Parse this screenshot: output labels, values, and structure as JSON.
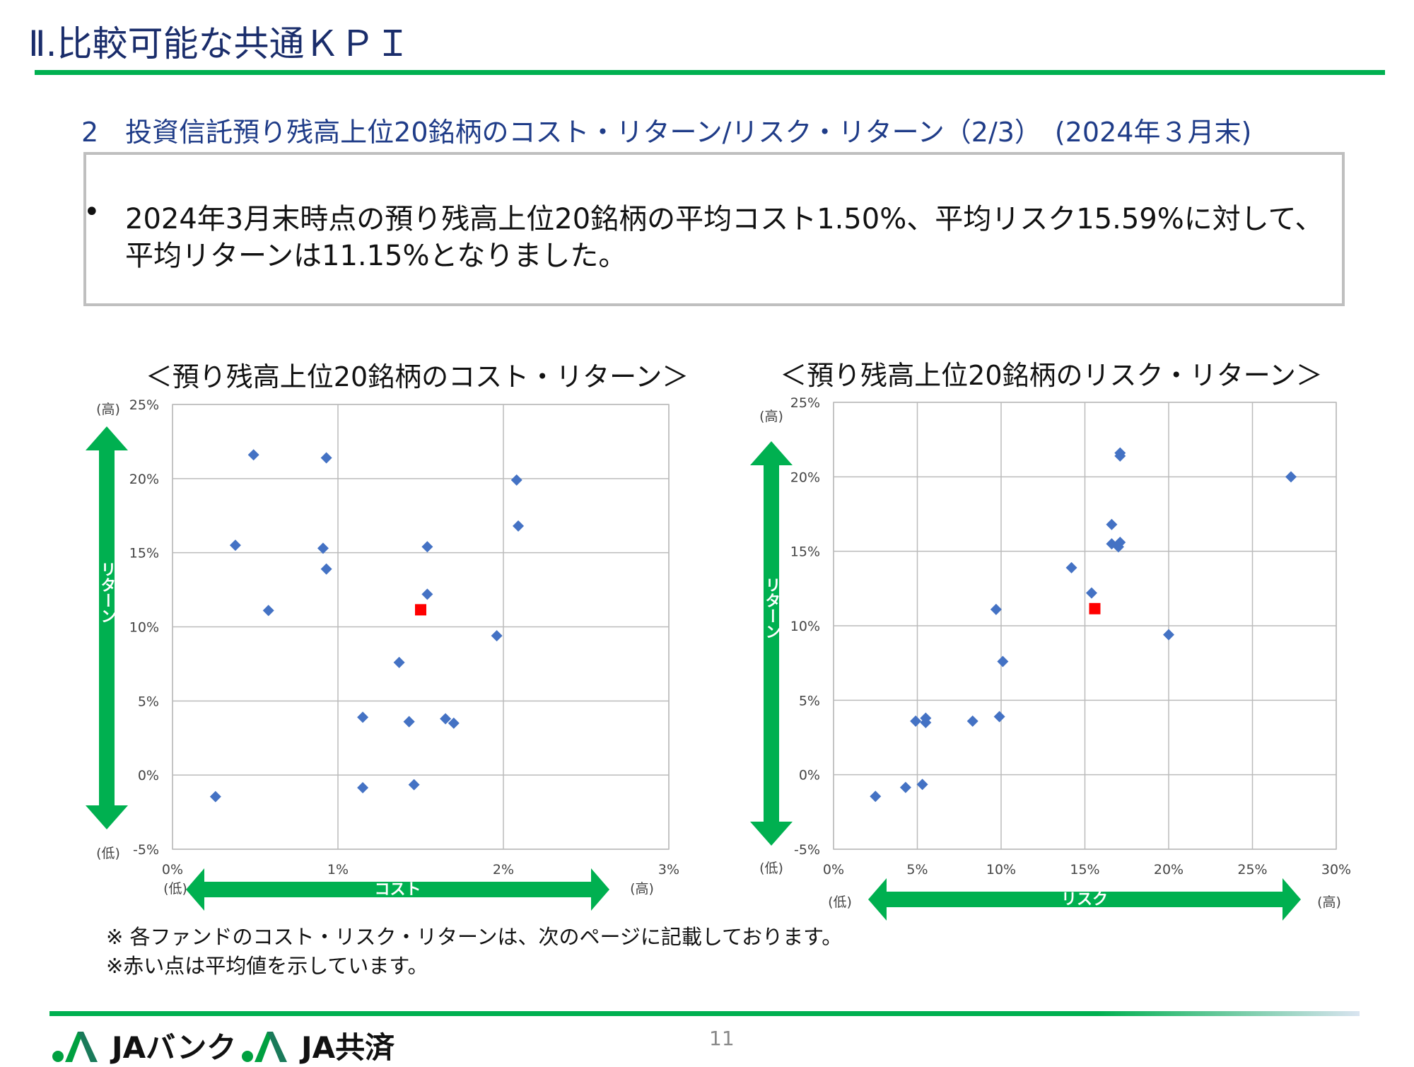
{
  "header": {
    "title": "Ⅱ.比較可能な共通ＫＰＩ",
    "subtitle": "2　投資信託預り残高上位20銘柄のコスト・リターン/リスク・リターン（2/3）　(2024年３月末)"
  },
  "summary": {
    "bullet": "•",
    "line1": "2024年3月末時点の預り残高上位20銘柄の平均コスト1.50%、平均リスク15.59%に対して、",
    "line2": "平均リターンは11.15%となりました。"
  },
  "colors": {
    "accent_green": "#00b050",
    "point_blue": "#4472c4",
    "average_red": "#ff0000",
    "title_navy": "#1a2d6b"
  },
  "chart_data": [
    {
      "type": "scatter",
      "title": "＜預り残高上位20銘柄のコスト・リターン＞",
      "xlabel": "コスト",
      "ylabel": "リターン",
      "x_low": "(低)",
      "x_high": "(高)",
      "y_low": "(低)",
      "y_high": "(高)",
      "xlim": [
        0,
        3
      ],
      "ylim": [
        -5,
        25
      ],
      "xticks": [
        0,
        1,
        2,
        3
      ],
      "xtick_labels": [
        "0%",
        "1%",
        "2%",
        "3%"
      ],
      "yticks": [
        -5,
        0,
        5,
        10,
        15,
        20,
        25
      ],
      "ytick_labels": [
        "-5%",
        "0%",
        "5%",
        "10%",
        "15%",
        "20%",
        "25%"
      ],
      "grid": true,
      "series": [
        {
          "name": "funds",
          "marker": "diamond",
          "points": [
            [
              0.49,
              21.6
            ],
            [
              0.93,
              21.4
            ],
            [
              2.08,
              19.9
            ],
            [
              2.09,
              16.8
            ],
            [
              0.38,
              15.5
            ],
            [
              0.91,
              15.3
            ],
            [
              1.54,
              15.4
            ],
            [
              0.93,
              13.9
            ],
            [
              1.54,
              12.2
            ],
            [
              0.58,
              11.1
            ],
            [
              1.96,
              9.4
            ],
            [
              1.37,
              7.6
            ],
            [
              1.15,
              3.9
            ],
            [
              1.43,
              3.6
            ],
            [
              1.65,
              3.8
            ],
            [
              1.7,
              3.5
            ],
            [
              1.15,
              -0.85
            ],
            [
              1.46,
              -0.65
            ],
            [
              0.26,
              -1.45
            ],
            [
              1.43,
              3.6
            ]
          ]
        },
        {
          "name": "average",
          "marker": "square",
          "points": [
            [
              1.5,
              11.15
            ]
          ]
        }
      ]
    },
    {
      "type": "scatter",
      "title": "＜預り残高上位20銘柄のリスク・リターン＞",
      "xlabel": "リスク",
      "ylabel": "リターン",
      "x_low": "(低)",
      "x_high": "(高)",
      "y_low": "(低)",
      "y_high": "(高)",
      "xlim": [
        0,
        30
      ],
      "ylim": [
        -5,
        25
      ],
      "xticks": [
        0,
        5,
        10,
        15,
        20,
        25,
        30
      ],
      "xtick_labels": [
        "0%",
        "5%",
        "10%",
        "15%",
        "20%",
        "25%",
        "30%"
      ],
      "yticks": [
        -5,
        0,
        5,
        10,
        15,
        20,
        25
      ],
      "ytick_labels": [
        "-5%",
        "0%",
        "5%",
        "10%",
        "15%",
        "20%",
        "25%"
      ],
      "grid": true,
      "series": [
        {
          "name": "funds",
          "marker": "diamond",
          "points": [
            [
              17.1,
              21.6
            ],
            [
              17.1,
              21.4
            ],
            [
              27.3,
              20.0
            ],
            [
              16.6,
              16.8
            ],
            [
              16.6,
              15.5
            ],
            [
              17.1,
              15.6
            ],
            [
              17.0,
              15.3
            ],
            [
              14.2,
              13.9
            ],
            [
              15.4,
              12.2
            ],
            [
              9.7,
              11.1
            ],
            [
              20.0,
              9.4
            ],
            [
              10.1,
              7.6
            ],
            [
              9.9,
              3.9
            ],
            [
              8.3,
              3.6
            ],
            [
              4.9,
              3.6
            ],
            [
              5.5,
              3.8
            ],
            [
              5.5,
              3.5
            ],
            [
              5.3,
              -0.65
            ],
            [
              4.3,
              -0.85
            ],
            [
              2.5,
              -1.45
            ]
          ]
        },
        {
          "name": "average",
          "marker": "square",
          "points": [
            [
              15.59,
              11.15
            ]
          ]
        }
      ]
    }
  ],
  "notes": [
    "※ 各ファンドのコスト・リスク・リターンは、次のページに記載しております。",
    "※赤い点は平均値を示しています。"
  ],
  "footer": {
    "logo1": "JAバンク",
    "logo2": "JA共済",
    "page_number": "11"
  }
}
